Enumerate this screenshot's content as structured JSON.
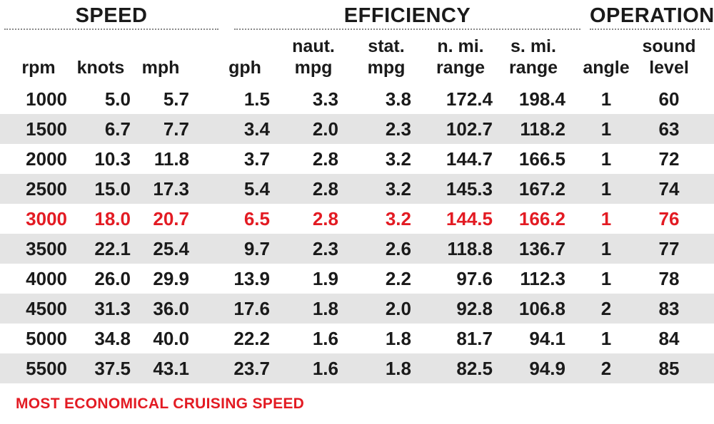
{
  "groups": {
    "speed": "SPEED",
    "efficiency": "EFFICIENCY",
    "operation": "OPERATION"
  },
  "columns": [
    {
      "key": "rpm",
      "line1": "",
      "line2": "rpm"
    },
    {
      "key": "knots",
      "line1": "",
      "line2": "knots"
    },
    {
      "key": "mph",
      "line1": "",
      "line2": "mph"
    },
    {
      "key": "gph",
      "line1": "",
      "line2": "gph"
    },
    {
      "key": "naut_mpg",
      "line1": "naut.",
      "line2": "mpg"
    },
    {
      "key": "stat_mpg",
      "line1": "stat.",
      "line2": "mpg"
    },
    {
      "key": "nmi_range",
      "line1": "n. mi.",
      "line2": "range"
    },
    {
      "key": "smi_range",
      "line1": "s. mi.",
      "line2": "range"
    },
    {
      "key": "angle",
      "line1": "",
      "line2": "angle"
    },
    {
      "key": "sound",
      "line1": "sound",
      "line2": "level"
    }
  ],
  "rows": [
    [
      "1000",
      "5.0",
      "5.7",
      "1.5",
      "3.3",
      "3.8",
      "172.4",
      "198.4",
      "1",
      "60"
    ],
    [
      "1500",
      "6.7",
      "7.7",
      "3.4",
      "2.0",
      "2.3",
      "102.7",
      "118.2",
      "1",
      "63"
    ],
    [
      "2000",
      "10.3",
      "11.8",
      "3.7",
      "2.8",
      "3.2",
      "144.7",
      "166.5",
      "1",
      "72"
    ],
    [
      "2500",
      "15.0",
      "17.3",
      "5.4",
      "2.8",
      "3.2",
      "145.3",
      "167.2",
      "1",
      "74"
    ],
    [
      "3000",
      "18.0",
      "20.7",
      "6.5",
      "2.8",
      "3.2",
      "144.5",
      "166.2",
      "1",
      "76"
    ],
    [
      "3500",
      "22.1",
      "25.4",
      "9.7",
      "2.3",
      "2.6",
      "118.8",
      "136.7",
      "1",
      "77"
    ],
    [
      "4000",
      "26.0",
      "29.9",
      "13.9",
      "1.9",
      "2.2",
      "97.6",
      "112.3",
      "1",
      "78"
    ],
    [
      "4500",
      "31.3",
      "36.0",
      "17.6",
      "1.8",
      "2.0",
      "92.8",
      "106.8",
      "2",
      "83"
    ],
    [
      "5000",
      "34.8",
      "40.0",
      "22.2",
      "1.6",
      "1.8",
      "81.7",
      "94.1",
      "1",
      "84"
    ],
    [
      "5500",
      "37.5",
      "43.1",
      "23.7",
      "1.6",
      "1.8",
      "82.5",
      "94.9",
      "2",
      "85"
    ]
  ],
  "highlight_row": 4,
  "highlight_color": "#e31b23",
  "stripe_color": "#e4e4e4",
  "footer": "MOST ECONOMICAL CRUISING SPEED"
}
